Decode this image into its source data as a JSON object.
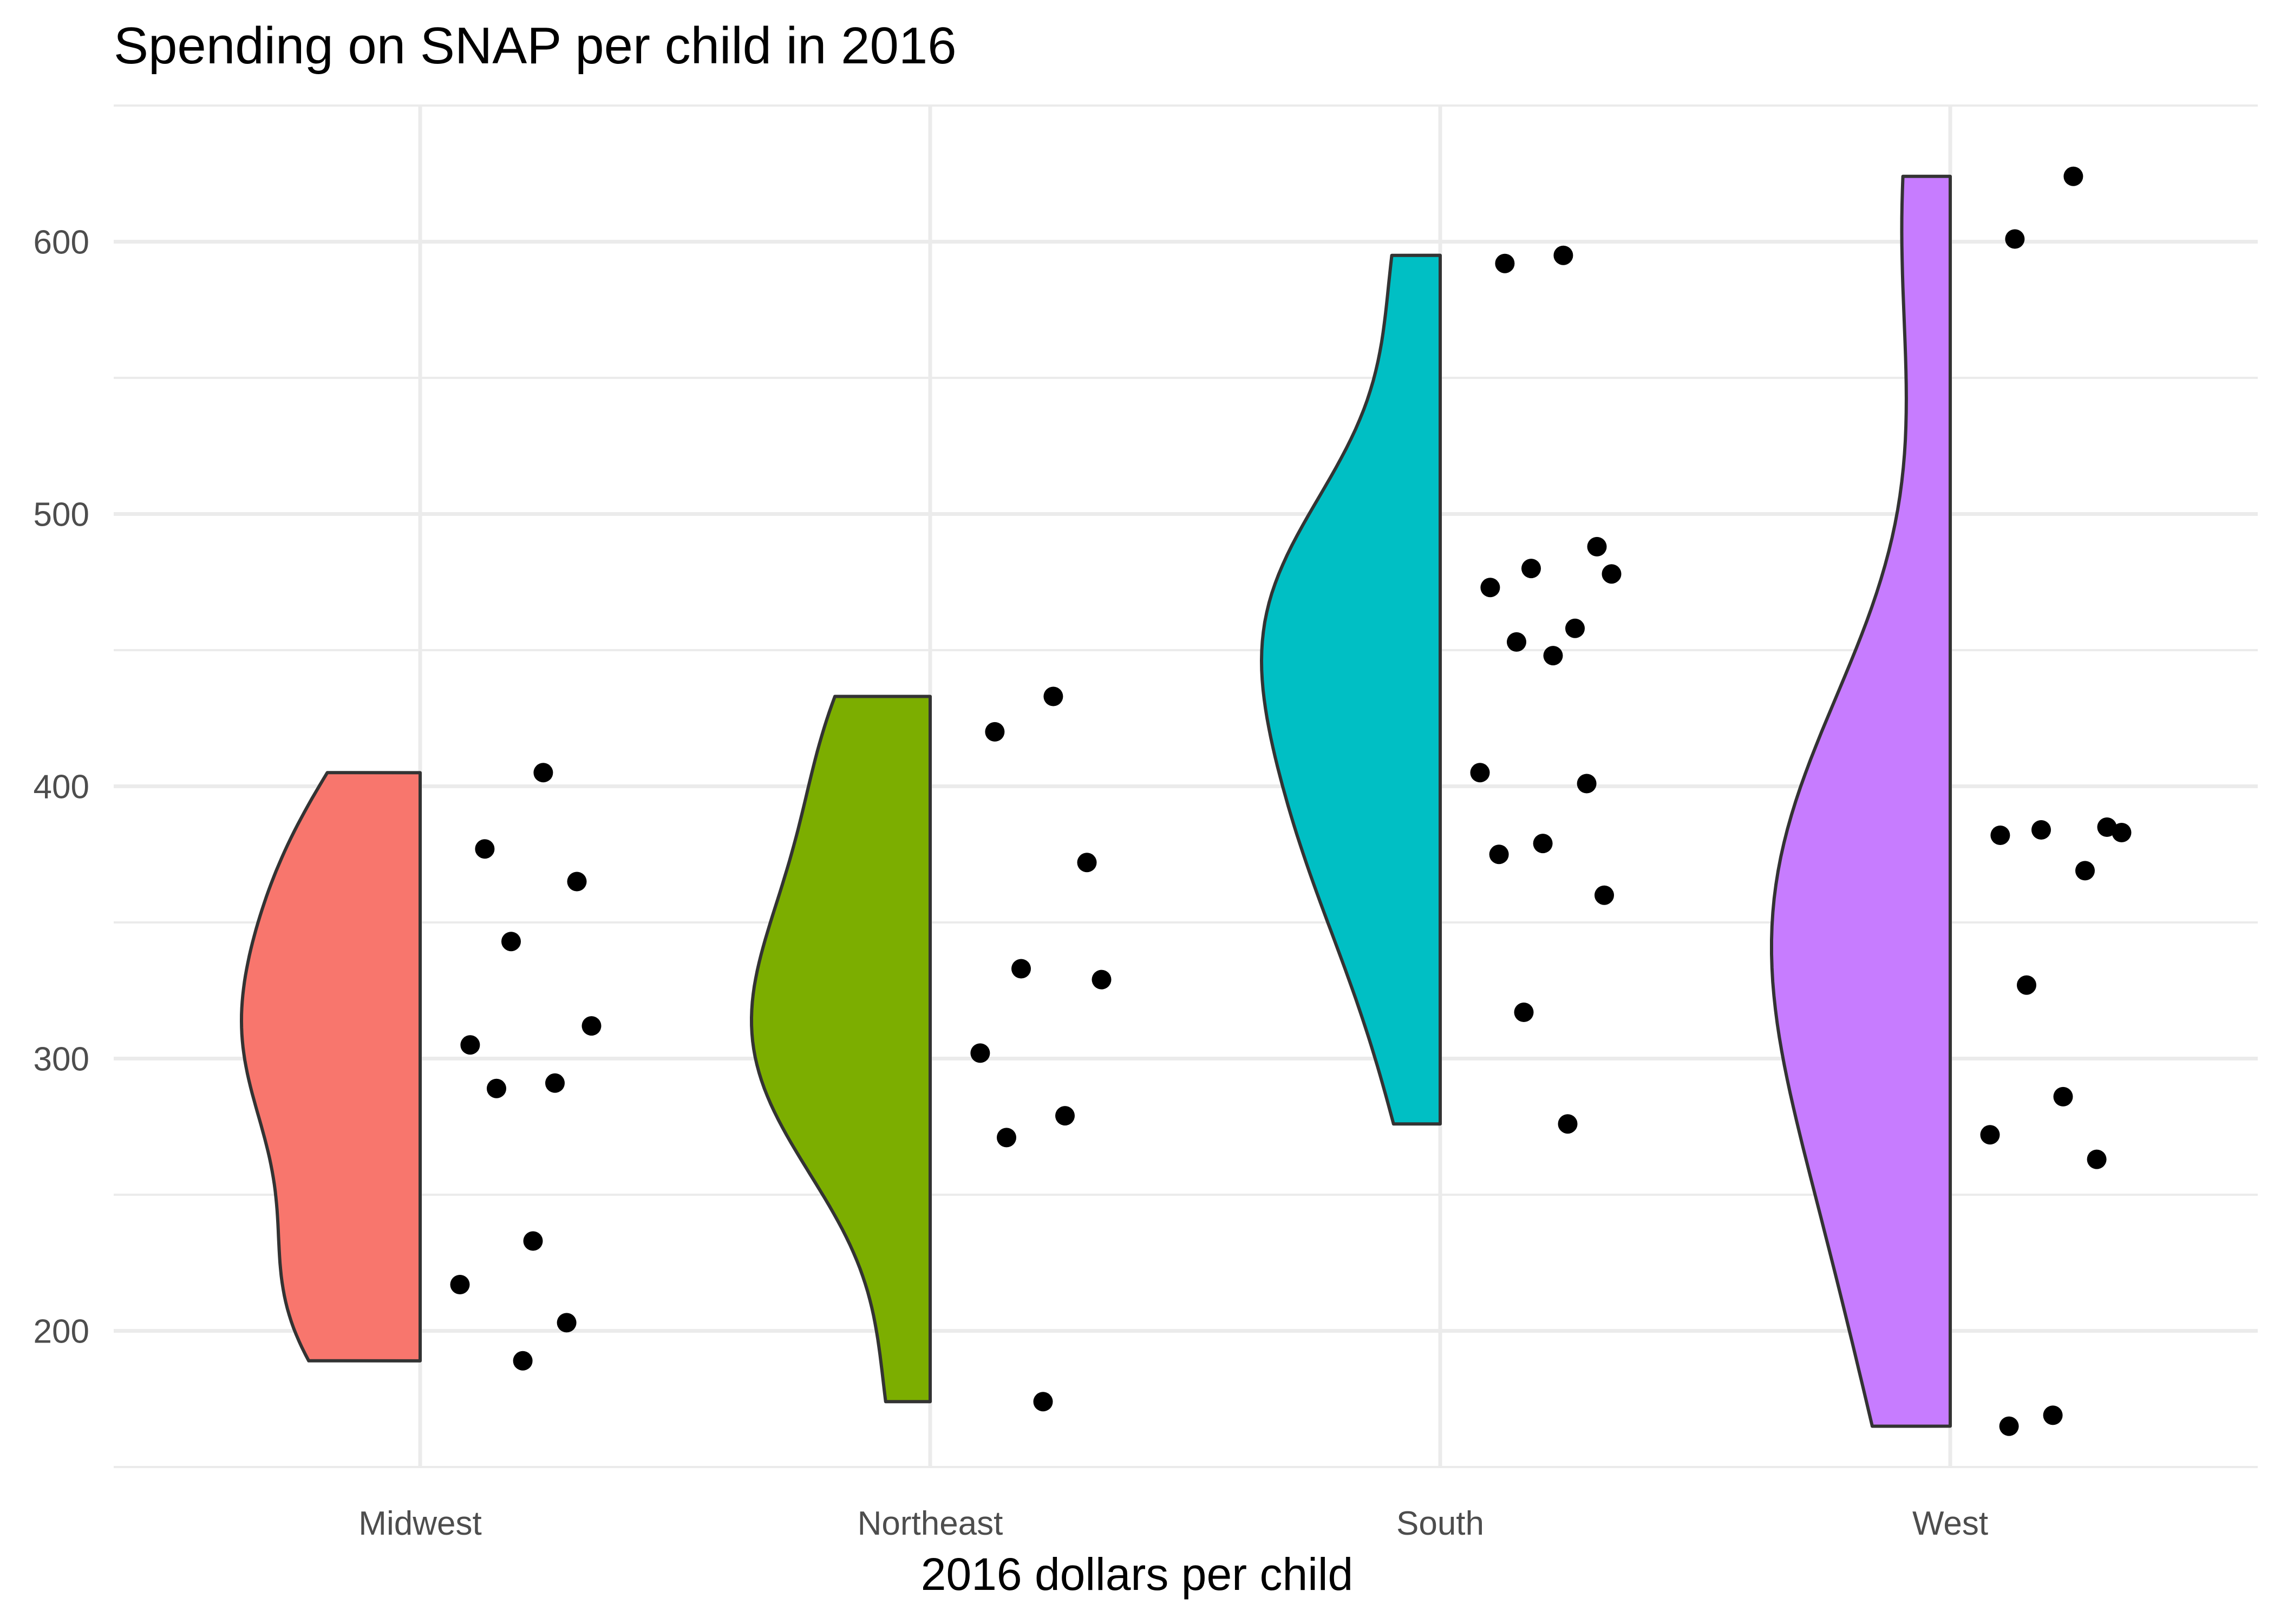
{
  "chart_data": {
    "type": "violin",
    "title": "Spending on SNAP per child in 2016",
    "xlabel": "2016 dollars per child",
    "ylabel": "",
    "categories": [
      "Midwest",
      "Northeast",
      "South",
      "West"
    ],
    "ylim": [
      150,
      650
    ],
    "yticks": [
      200,
      300,
      400,
      500,
      600
    ],
    "grid": true,
    "legend": "none",
    "colors": {
      "Midwest": "#F8766D",
      "Northeast": "#7CAE00",
      "South": "#00BFC4",
      "West": "#C77CFF"
    },
    "series": [
      {
        "category": "Midwest",
        "values": [
          405,
          377,
          365,
          343,
          312,
          305,
          291,
          289,
          233,
          217,
          203,
          189
        ]
      },
      {
        "category": "Northeast",
        "values": [
          433,
          420,
          372,
          333,
          329,
          302,
          279,
          271,
          174
        ]
      },
      {
        "category": "South",
        "values": [
          595,
          592,
          488,
          480,
          478,
          473,
          458,
          453,
          448,
          405,
          401,
          379,
          375,
          360,
          317,
          276
        ]
      },
      {
        "category": "West",
        "values": [
          624,
          601,
          385,
          384,
          383,
          382,
          369,
          327,
          286,
          272,
          263,
          169,
          165
        ]
      }
    ]
  }
}
